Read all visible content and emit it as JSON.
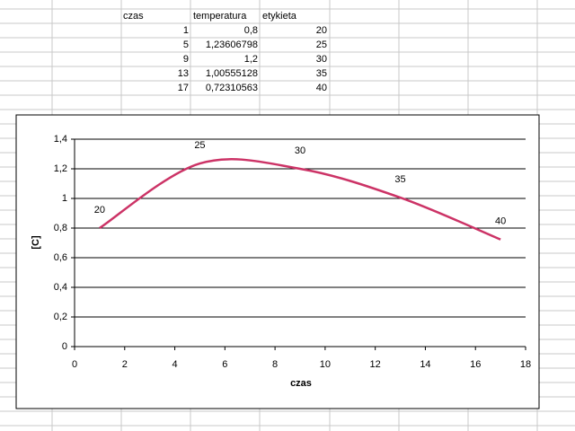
{
  "table": {
    "header": [
      "czas",
      "temperatura",
      "etykieta"
    ],
    "rows": [
      [
        "1",
        "0,8",
        "20"
      ],
      [
        "5",
        "1,23606798",
        "25"
      ],
      [
        "9",
        "1,2",
        "30"
      ],
      [
        "13",
        "1,00555128",
        "35"
      ],
      [
        "17",
        "0,72310563",
        "40"
      ]
    ]
  },
  "chart_data": {
    "type": "line",
    "x_label": "czas",
    "y_label": "[C]",
    "x": [
      1,
      5,
      9,
      13,
      17
    ],
    "series": [
      {
        "color": "#cc3366",
        "values": [
          0.8,
          1.23606798,
          1.2,
          1.00555128,
          0.72310563
        ]
      }
    ],
    "xlim": [
      0,
      18
    ],
    "xticks": [
      0,
      2,
      4,
      6,
      8,
      10,
      12,
      14,
      16,
      18
    ],
    "ylim": [
      0,
      1.4
    ],
    "yticks": [
      0,
      {
        "value": 0.2,
        "label": "0,2"
      },
      {
        "value": 0.4,
        "label": "0,4"
      },
      {
        "value": 0.6,
        "label": "0,6"
      },
      {
        "value": 0.8,
        "label": "0,8"
      },
      1,
      {
        "value": 1.2,
        "label": "1,2"
      },
      {
        "value": 1.4,
        "label": "1,4"
      }
    ],
    "grid": true
  }
}
